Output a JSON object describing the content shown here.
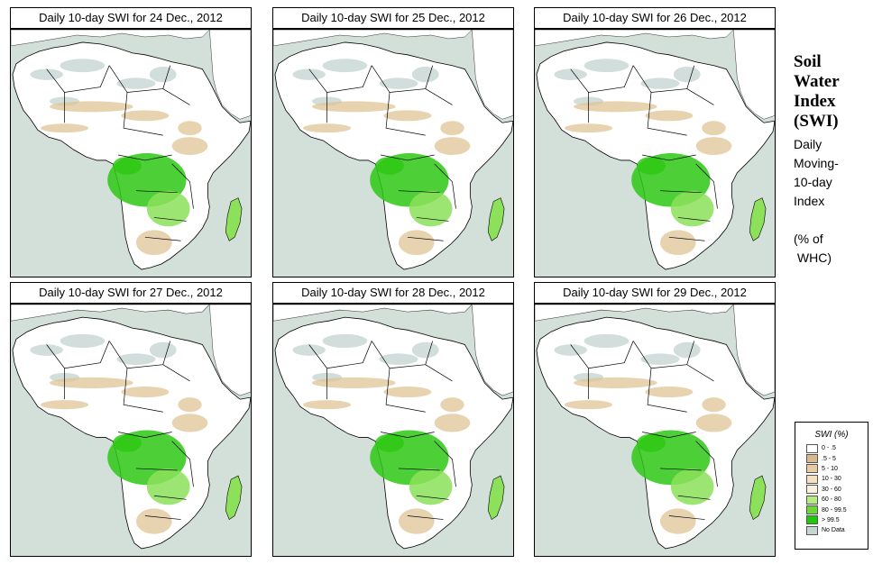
{
  "panels": [
    {
      "title": "Daily 10-day SWI for  24 Dec., 2012"
    },
    {
      "title": "Daily 10-day SWI for  25 Dec., 2012"
    },
    {
      "title": "Daily 10-day SWI for  26 Dec., 2012"
    },
    {
      "title": "Daily 10-day SWI for  27 Dec., 2012"
    },
    {
      "title": "Daily 10-day SWI for  28 Dec., 2012"
    },
    {
      "title": "Daily 10-day SWI for  29 Dec., 2012"
    }
  ],
  "sidebar": {
    "title_lines": [
      "Soil",
      "Water",
      "Index",
      "(SWI)"
    ],
    "subtitle_lines": [
      "Daily",
      "Moving-",
      "10-day",
      "Index",
      "",
      "(% of",
      " WHC)"
    ]
  },
  "legend": {
    "title": "SWI (%)",
    "items": [
      {
        "label": "0 - .5",
        "color": "#ffffff"
      },
      {
        "label": ".5 - 5",
        "color": "#d9b98c"
      },
      {
        "label": "5 - 10",
        "color": "#e8cba0"
      },
      {
        "label": "10 - 30",
        "color": "#f3e1c2"
      },
      {
        "label": "30 - 60",
        "color": "#f9f1df"
      },
      {
        "label": "60 - 80",
        "color": "#b4ec82"
      },
      {
        "label": "80 - 99.5",
        "color": "#6fd63a"
      },
      {
        "label": "> 99.5",
        "color": "#1ec80a"
      },
      {
        "label": "No Data",
        "color": "#c6d6d2"
      }
    ]
  },
  "colors": {
    "ocean": "#d3dfd9",
    "land": "#ffffff",
    "dry": "#e0c497",
    "wet": "#2ec814",
    "moist": "#8ce05a",
    "nodata": "#c6d6d2",
    "border": "#000000"
  }
}
